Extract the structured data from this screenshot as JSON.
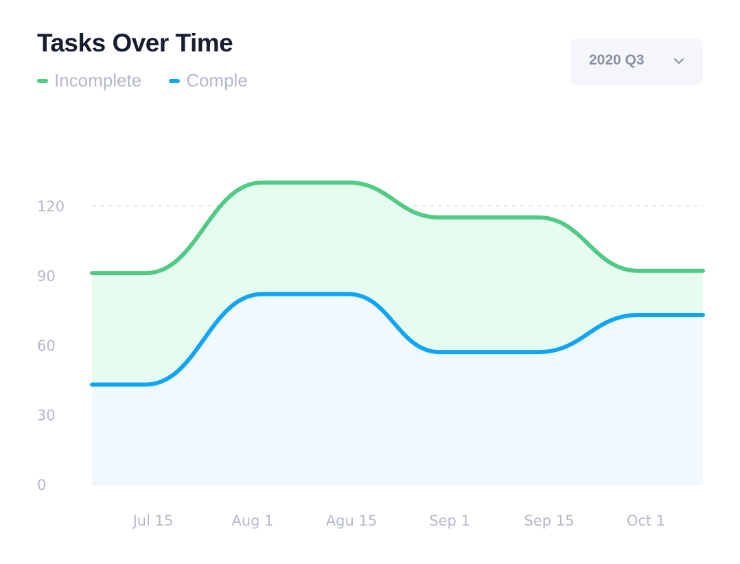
{
  "header": {
    "title": "Tasks Over Time",
    "period_select": {
      "value": "2020 Q3"
    }
  },
  "legend": [
    {
      "label": "Incomplete",
      "color": "#4fcb85"
    },
    {
      "label": "Comple",
      "color": "#0ea5f6"
    }
  ],
  "icons": {
    "period_dropdown": "chevron-down-icon"
  },
  "colors": {
    "incomplete_line": "#4fcb85",
    "incomplete_fill": "#e6fcef",
    "complete_line": "#0ea5f6",
    "complete_fill": "#f1f8fe",
    "grid": "#e4e6ec"
  },
  "chart_data": {
    "type": "area",
    "title": "Tasks Over Time",
    "xlabel": "",
    "ylabel": "",
    "x_ticks": [
      "Jul 15",
      "Aug 1",
      "Agu 15",
      "Sep 1",
      "Sep 15",
      "Oct 1"
    ],
    "y_ticks": [
      0,
      30,
      60,
      90,
      120
    ],
    "ylim": [
      0,
      135
    ],
    "grid": true,
    "legend_position": "top-left",
    "series": [
      {
        "name": "Incomplete",
        "values": [
          91,
          91,
          130,
          130,
          115,
          115,
          92,
          92
        ]
      },
      {
        "name": "Comple",
        "values": [
          43,
          43,
          82,
          82,
          57,
          57,
          73,
          73
        ]
      }
    ]
  }
}
